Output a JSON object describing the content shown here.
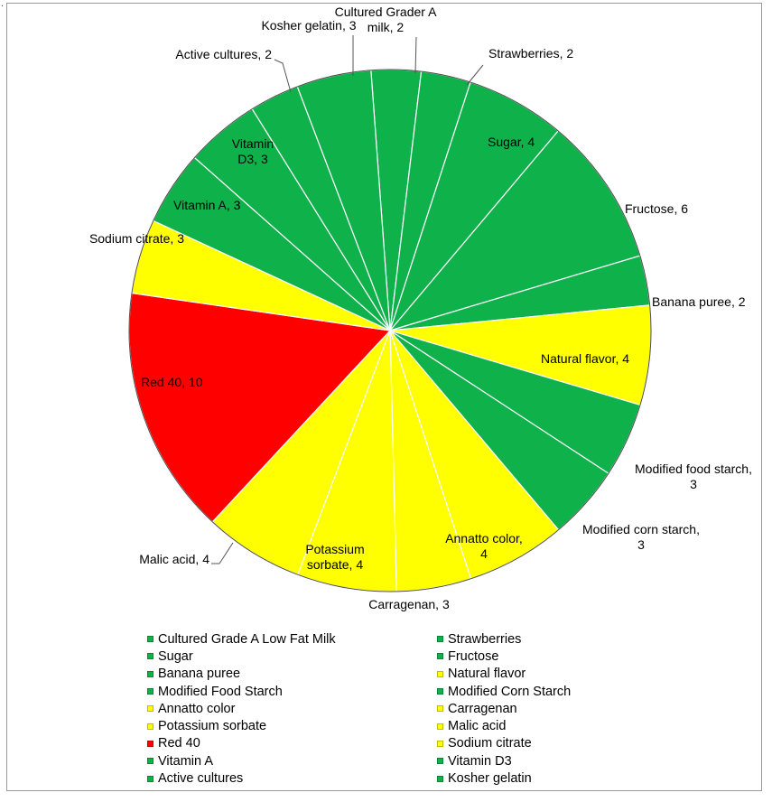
{
  "chart_data": {
    "type": "pie",
    "title": "",
    "slices": [
      {
        "label": "Cultured Grader A milk",
        "value": 2,
        "color": "#0fb24a"
      },
      {
        "label": "Strawberries",
        "value": 2,
        "color": "#0fb24a"
      },
      {
        "label": "Sugar",
        "value": 4,
        "color": "#0fb24a"
      },
      {
        "label": "Fructose",
        "value": 6,
        "color": "#0fb24a"
      },
      {
        "label": "Banana puree",
        "value": 2,
        "color": "#0fb24a"
      },
      {
        "label": "Natural flavor",
        "value": 4,
        "color": "#ffff00"
      },
      {
        "label": "Modified food starch",
        "value": 3,
        "color": "#0fb24a"
      },
      {
        "label": "Modified corn starch",
        "value": 3,
        "color": "#0fb24a"
      },
      {
        "label": "Annatto color",
        "value": 4,
        "color": "#ffff00"
      },
      {
        "label": "Carragenan",
        "value": 3,
        "color": "#ffff00"
      },
      {
        "label": "Potassium sorbate",
        "value": 4,
        "color": "#ffff00"
      },
      {
        "label": "Malic acid",
        "value": 4,
        "color": "#ffff00"
      },
      {
        "label": "Red 40",
        "value": 10,
        "color": "#ff0000"
      },
      {
        "label": "Sodium citrate",
        "value": 3,
        "color": "#ffff00"
      },
      {
        "label": "Vitamin A",
        "value": 3,
        "color": "#0fb24a"
      },
      {
        "label": "Vitamin D3",
        "value": 3,
        "color": "#0fb24a"
      },
      {
        "label": "Active cultures",
        "value": 2,
        "color": "#0fb24a"
      },
      {
        "label": "Kosher gelatin",
        "value": 3,
        "color": "#0fb24a"
      }
    ],
    "data_labels": [
      "Cultured Grader A milk, 2",
      "Strawberries, 2",
      "Sugar, 4",
      "Fructose, 6",
      "Banana puree, 2",
      "Natural flavor, 4",
      "Modified food starch, 3",
      "Modified corn starch, 3",
      "Annatto color, 4",
      "Carragenan, 3",
      "Potassium sorbate, 4",
      "Malic acid, 4",
      "Red 40, 10",
      "Sodium citrate, 3",
      "Vitamin A, 3",
      "Vitamin D3, 3",
      "Active cultures, 2",
      "Kosher gelatin, 3"
    ],
    "legend": {
      "placement": "bottom",
      "entries": [
        {
          "label": "Cultured Grade A  Low Fat Milk",
          "color": "#0fb24a"
        },
        {
          "label": "Strawberries",
          "color": "#0fb24a"
        },
        {
          "label": "Sugar",
          "color": "#0fb24a"
        },
        {
          "label": "Fructose",
          "color": "#0fb24a"
        },
        {
          "label": "Banana puree",
          "color": "#0fb24a"
        },
        {
          "label": "Natural flavor",
          "color": "#ffff00"
        },
        {
          "label": "Modified Food Starch",
          "color": "#0fb24a"
        },
        {
          "label": "Modified Corn Starch",
          "color": "#0fb24a"
        },
        {
          "label": "Annatto color",
          "color": "#ffff00"
        },
        {
          "label": "Carragenan",
          "color": "#ffff00"
        },
        {
          "label": "Potassium sorbate",
          "color": "#ffff00"
        },
        {
          "label": "Malic acid",
          "color": "#ffff00"
        },
        {
          "label": "Red 40",
          "color": "#ff0000"
        },
        {
          "label": "Sodium citrate",
          "color": "#ffff00"
        },
        {
          "label": "Vitamin A",
          "color": "#0fb24a"
        },
        {
          "label": "Vitamin D3",
          "color": "#0fb24a"
        },
        {
          "label": "Active cultures",
          "color": "#0fb24a"
        },
        {
          "label": "Kosher gelatin",
          "color": "#0fb24a"
        }
      ]
    }
  },
  "corner_mark": "."
}
